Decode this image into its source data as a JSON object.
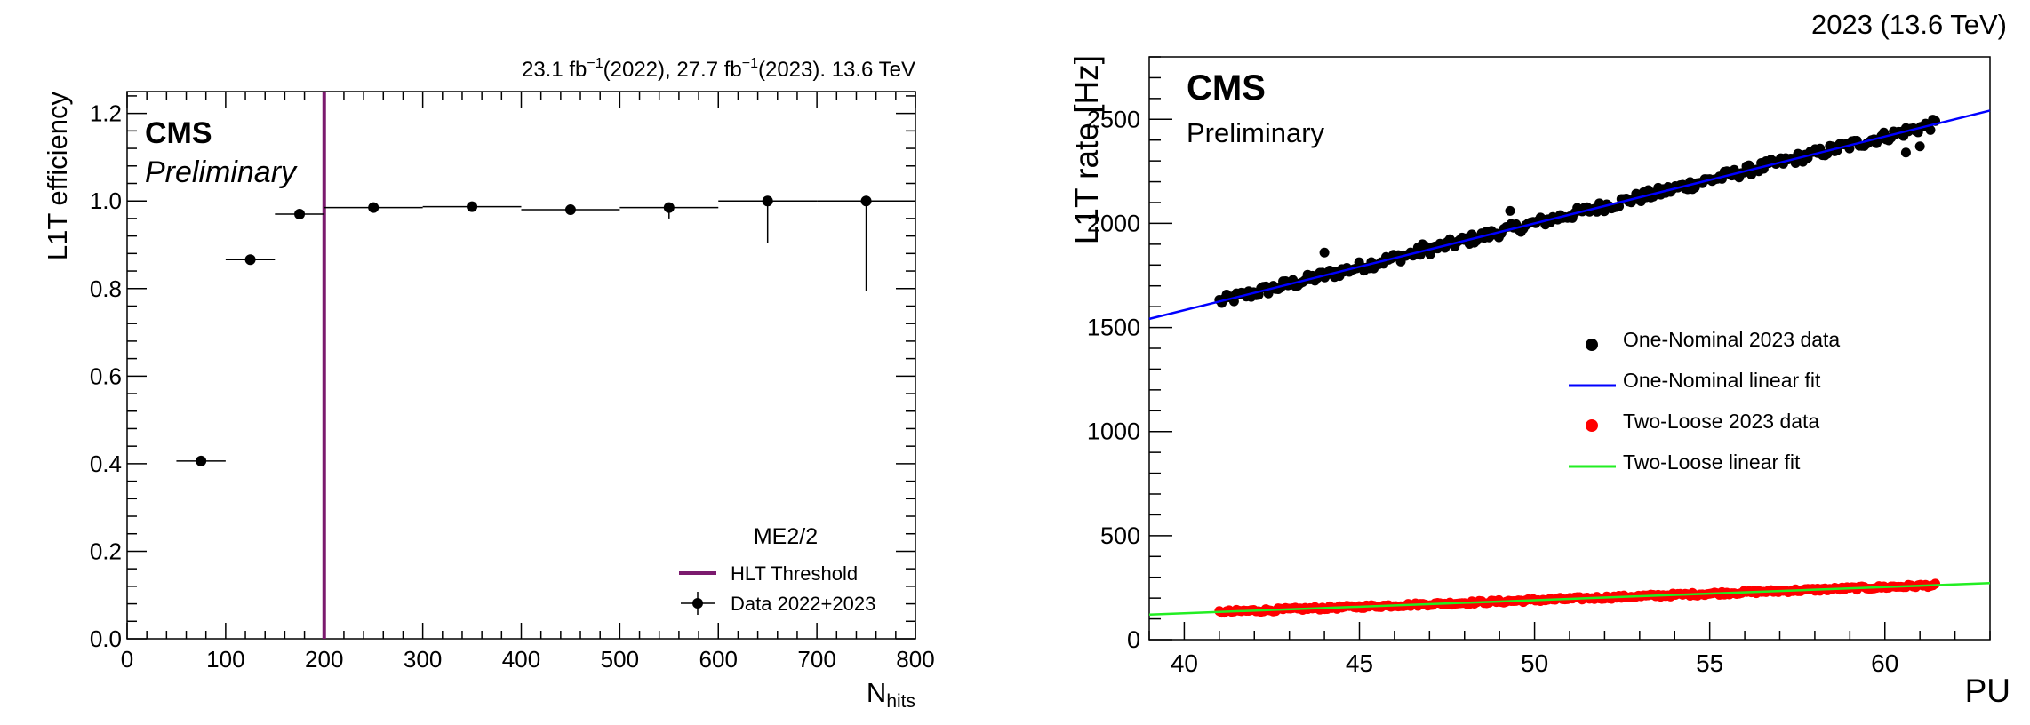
{
  "chart_data": [
    {
      "type": "scatter",
      "experiment": "CMS",
      "status": "Preliminary",
      "lumi_prefix": "23.1 fb",
      "lumi_mid": "(2022), 27.7 fb",
      "lumi_suffix": "(2023). 13.6 TeV",
      "lumi_exponent": "−1",
      "xlabel": "N",
      "xlabel_sub": "hits",
      "ylabel": "L1T efficiency",
      "xlim": [
        0,
        800
      ],
      "ylim": [
        0,
        1.25
      ],
      "xticks": [
        0,
        100,
        200,
        300,
        400,
        500,
        600,
        700,
        800
      ],
      "xtick_labels": [
        "0",
        "100",
        "200",
        "300",
        "400",
        "500",
        "600",
        "700",
        "800"
      ],
      "yticks": [
        0,
        0.2,
        0.4,
        0.6,
        0.8,
        1.0,
        1.2
      ],
      "ytick_labels": [
        "0.0",
        "0.2",
        "0.4",
        "0.6",
        "0.8",
        "1.0",
        "1.2"
      ],
      "threshold": {
        "x": 200,
        "label": "HLT Threshold",
        "color": "#7b1a6e"
      },
      "legend_title": "ME2/2",
      "series": [
        {
          "name": "Data 2022+2023",
          "color": "#000000",
          "points": [
            {
              "x": 75,
              "xlo": 50,
              "xhi": 100,
              "y": 0.406,
              "ylo": 0.404,
              "yhi": 0.408
            },
            {
              "x": 125,
              "xlo": 100,
              "xhi": 150,
              "y": 0.866,
              "ylo": 0.864,
              "yhi": 0.868
            },
            {
              "x": 175,
              "xlo": 150,
              "xhi": 200,
              "y": 0.97,
              "ylo": 0.967,
              "yhi": 0.973
            },
            {
              "x": 250,
              "xlo": 200,
              "xhi": 300,
              "y": 0.985,
              "ylo": 0.982,
              "yhi": 0.988
            },
            {
              "x": 350,
              "xlo": 300,
              "xhi": 400,
              "y": 0.987,
              "ylo": 0.983,
              "yhi": 0.991
            },
            {
              "x": 450,
              "xlo": 400,
              "xhi": 500,
              "y": 0.98,
              "ylo": 0.975,
              "yhi": 0.985
            },
            {
              "x": 550,
              "xlo": 500,
              "xhi": 600,
              "y": 0.985,
              "ylo": 0.96,
              "yhi": 0.995
            },
            {
              "x": 650,
              "xlo": 600,
              "xhi": 700,
              "y": 1.0,
              "ylo": 0.905,
              "yhi": 1.0
            },
            {
              "x": 750,
              "xlo": 700,
              "xhi": 800,
              "y": 1.0,
              "ylo": 0.795,
              "yhi": 1.0
            }
          ]
        }
      ]
    },
    {
      "type": "scatter",
      "experiment": "CMS",
      "status": "Preliminary",
      "energy_label": "2023 (13.6 TeV)",
      "xlabel": "PU",
      "ylabel": "L1T rate [Hz]",
      "xlim": [
        39,
        63
      ],
      "ylim": [
        0,
        2800
      ],
      "xticks": [
        40,
        45,
        50,
        55,
        60
      ],
      "xtick_labels": [
        "40",
        "45",
        "50",
        "55",
        "60"
      ],
      "yticks": [
        0,
        500,
        1000,
        1500,
        2000,
        2500
      ],
      "ytick_labels": [
        "0",
        "500",
        "1000",
        "1500",
        "2000",
        "2500"
      ],
      "data_x_range": [
        41,
        61.5
      ],
      "legend": [
        "One-Nominal 2023 data",
        "One-Nominal linear fit",
        "Two-Loose 2023 data",
        "Two-Loose linear fit"
      ],
      "series": [
        {
          "name": "One-Nominal 2023 data",
          "kind": "points",
          "color": "#000000",
          "trend": {
            "slope": 41.7,
            "intercept": -85
          },
          "spread": 50,
          "outliers": [
            {
              "x": 44.0,
              "y": 1860
            },
            {
              "x": 49.3,
              "y": 2060
            },
            {
              "x": 46.8,
              "y": 1900
            },
            {
              "x": 52.0,
              "y": 2060
            },
            {
              "x": 60.6,
              "y": 2340
            },
            {
              "x": 61.0,
              "y": 2370
            }
          ]
        },
        {
          "name": "One-Nominal linear fit",
          "kind": "line",
          "color": "#0000ff",
          "slope": 41.7,
          "intercept": -85
        },
        {
          "name": "Two-Loose 2023 data",
          "kind": "points",
          "color": "#ff0000",
          "trend": {
            "slope": 6.3,
            "intercept": -125
          },
          "spread": 15,
          "outliers": []
        },
        {
          "name": "Two-Loose linear fit",
          "kind": "line",
          "color": "#22ee22",
          "slope": 6.3,
          "intercept": -125
        }
      ]
    }
  ]
}
